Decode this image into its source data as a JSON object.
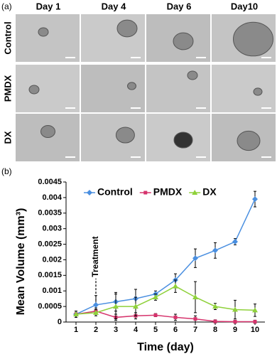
{
  "panel_a": {
    "panel_label": "(a)",
    "columns": [
      "Day 1",
      "Day 4",
      "Day 6",
      "Day10"
    ],
    "rows": [
      "Control",
      "PMDX",
      "DX"
    ]
  },
  "chart_data": {
    "type": "line",
    "panel_label": "(b)",
    "x_label": "Time (day)",
    "y_label": "Mean Volume (mm³)",
    "x": [
      1,
      2,
      3,
      4,
      5,
      6,
      7,
      8,
      9,
      10
    ],
    "xlim": [
      0.5,
      10.5
    ],
    "xticks": [
      1,
      2,
      3,
      4,
      5,
      6,
      7,
      8,
      9,
      10
    ],
    "ylim": [
      0,
      0.0045
    ],
    "yticks": [
      0,
      0.0005,
      0.001,
      0.0015,
      0.002,
      0.0025,
      0.003,
      0.0035,
      0.004,
      0.0045
    ],
    "grid": false,
    "legend": "top",
    "annotation": {
      "text": "Treatment",
      "x": 2
    },
    "series": [
      {
        "name": "Control",
        "color": "#4a8fe0",
        "marker": "diamond",
        "values": [
          0.00025,
          0.00055,
          0.00065,
          0.00075,
          0.0009,
          0.00135,
          0.00205,
          0.0023,
          0.00258,
          0.00395
        ],
        "errors": [
          0.0001,
          0.0003,
          0.0003,
          0.0003,
          0.0001,
          0.0002,
          0.0003,
          0.00025,
          0.0001,
          0.00025
        ]
      },
      {
        "name": "PMDX",
        "color": "#d6336c",
        "marker": "square",
        "values": [
          0.00025,
          0.00035,
          0.00015,
          0.0002,
          0.00022,
          0.00015,
          0.0001,
          2e-05,
          1e-05,
          1e-05
        ],
        "errors": [
          5e-05,
          0.0001,
          0.0001,
          0.0001,
          5e-05,
          0.0001,
          0.0001,
          5e-05,
          5e-05,
          5e-05
        ]
      },
      {
        "name": "DX",
        "color": "#8fd13b",
        "marker": "triangle",
        "values": [
          0.00025,
          0.0003,
          0.0005,
          0.0005,
          0.0008,
          0.00115,
          0.0008,
          0.0005,
          0.0004,
          0.00038
        ],
        "errors": [
          0.0001,
          0.0001,
          0.0004,
          0.0003,
          0.0001,
          0.0002,
          0.0005,
          0.0001,
          0.0003,
          0.0002
        ]
      }
    ]
  }
}
